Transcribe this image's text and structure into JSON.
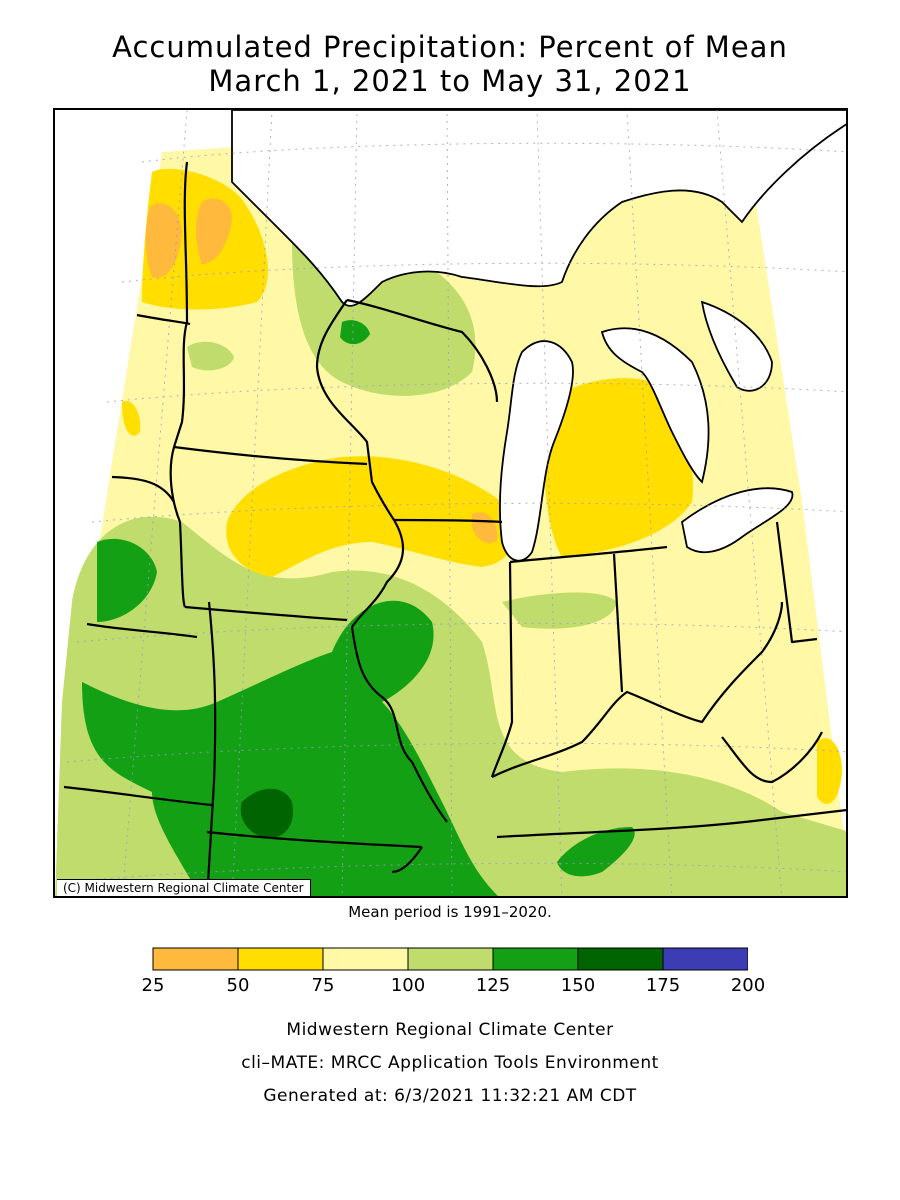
{
  "title_line1": "Accumulated Precipitation: Percent of Mean",
  "title_line2": "March 1, 2021 to May 31, 2021",
  "map_credit": "(C) Midwestern Regional Climate Center",
  "mean_period": "Mean period is 1991–2020.",
  "legend": {
    "bins": [
      {
        "from": 25,
        "to": 50,
        "color": "#ffb93c"
      },
      {
        "from": 50,
        "to": 75,
        "color": "#ffde00"
      },
      {
        "from": 75,
        "to": 100,
        "color": "#fff8a6"
      },
      {
        "from": 100,
        "to": 125,
        "color": "#bfdc6c"
      },
      {
        "from": 125,
        "to": 150,
        "color": "#14a014"
      },
      {
        "from": 150,
        "to": 175,
        "color": "#006400"
      },
      {
        "from": 175,
        "to": 200,
        "color": "#3c3cb4"
      }
    ],
    "ticks": [
      "25",
      "50",
      "75",
      "100",
      "125",
      "150",
      "175",
      "200"
    ]
  },
  "footer": {
    "org": "Midwestern Regional Climate Center",
    "tool": "cli–MATE: MRCC Application Tools Environment",
    "generated": "Generated at: 6/3/2021 11:32:21 AM CDT"
  }
}
